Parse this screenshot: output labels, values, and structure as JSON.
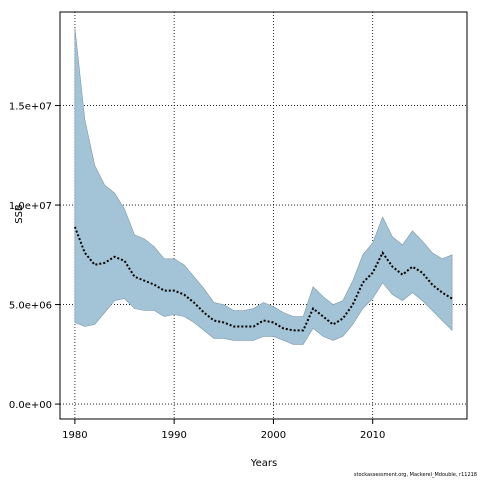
{
  "chart_data": {
    "type": "area",
    "xlabel": "Years",
    "ylabel": "SSB",
    "xlim": [
      1978.5,
      2019.5
    ],
    "ylim": [
      -750000,
      19700000
    ],
    "xticks": [
      1980,
      1990,
      2000,
      2010
    ],
    "yticks": [
      {
        "value": 0,
        "label": "0.0e+00"
      },
      {
        "value": 5000000,
        "label": "5.0e+06"
      },
      {
        "value": 10000000,
        "label": "1.0e+07"
      },
      {
        "value": 15000000,
        "label": "1.5e+07"
      }
    ],
    "grid": true,
    "colors": {
      "band_fill": "#a3c4d6",
      "band_edge": "#7d98aa",
      "line": "#000000",
      "grid": "#000000"
    },
    "x": [
      1980,
      1981,
      1982,
      1983,
      1984,
      1985,
      1986,
      1987,
      1988,
      1989,
      1990,
      1991,
      1992,
      1993,
      1994,
      1995,
      1996,
      1997,
      1998,
      1999,
      2000,
      2001,
      2002,
      2003,
      2004,
      2005,
      2006,
      2007,
      2008,
      2009,
      2010,
      2011,
      2012,
      2013,
      2014,
      2015,
      2016,
      2017,
      2018
    ],
    "series": [
      {
        "role": "estimate",
        "style": "dotted",
        "values": [
          8900000,
          7600000,
          7000000,
          7100000,
          7400000,
          7200000,
          6400000,
          6200000,
          6000000,
          5700000,
          5700000,
          5500000,
          5100000,
          4600000,
          4200000,
          4100000,
          3900000,
          3900000,
          3900000,
          4200000,
          4100000,
          3800000,
          3700000,
          3700000,
          4800000,
          4400000,
          4000000,
          4300000,
          5000000,
          6100000,
          6600000,
          7600000,
          6900000,
          6500000,
          6900000,
          6600000,
          6000000,
          5600000,
          5300000
        ]
      },
      {
        "role": "upper",
        "values": [
          18900000,
          14300000,
          12000000,
          11000000,
          10600000,
          9800000,
          8500000,
          8300000,
          7900000,
          7300000,
          7300000,
          7000000,
          6400000,
          5800000,
          5100000,
          5000000,
          4700000,
          4700000,
          4800000,
          5100000,
          4900000,
          4600000,
          4400000,
          4400000,
          5900000,
          5400000,
          5000000,
          5200000,
          6200000,
          7500000,
          8100000,
          9400000,
          8400000,
          8000000,
          8700000,
          8200000,
          7600000,
          7300000,
          7500000
        ]
      },
      {
        "role": "lower",
        "values": [
          4100000,
          3900000,
          4000000,
          4600000,
          5200000,
          5300000,
          4800000,
          4700000,
          4700000,
          4400000,
          4500000,
          4400000,
          4100000,
          3700000,
          3300000,
          3300000,
          3200000,
          3200000,
          3200000,
          3400000,
          3400000,
          3200000,
          3000000,
          3000000,
          3800000,
          3400000,
          3200000,
          3400000,
          4000000,
          4800000,
          5300000,
          6100000,
          5500000,
          5200000,
          5600000,
          5200000,
          4700000,
          4200000,
          3700000
        ]
      }
    ]
  },
  "credit": "stockassessment.org, Mackerel_Mdouble, r11218"
}
